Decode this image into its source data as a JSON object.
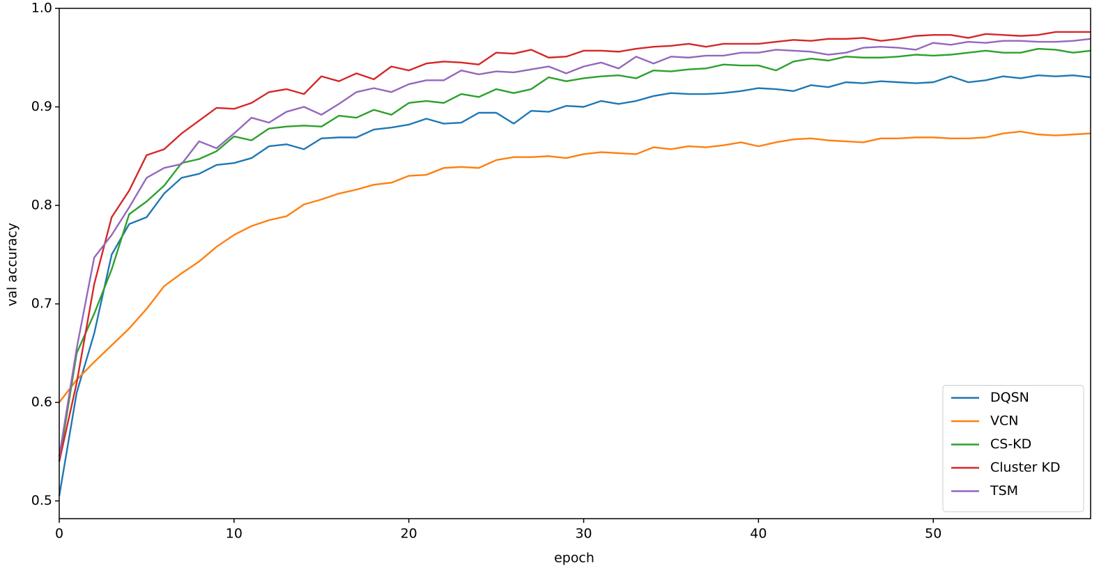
{
  "chart_data": {
    "type": "line",
    "xlabel": "epoch",
    "ylabel": "val accuracy",
    "x": [
      0,
      1,
      2,
      3,
      4,
      5,
      6,
      7,
      8,
      9,
      10,
      11,
      12,
      13,
      14,
      15,
      16,
      17,
      18,
      19,
      20,
      21,
      22,
      23,
      24,
      25,
      26,
      27,
      28,
      29,
      30,
      31,
      32,
      33,
      34,
      35,
      36,
      37,
      38,
      39,
      40,
      41,
      42,
      43,
      44,
      45,
      46,
      47,
      48,
      49,
      50,
      51,
      52,
      53,
      54,
      55,
      56,
      57,
      58,
      59
    ],
    "xlim": [
      0,
      59
    ],
    "xticks": [
      0,
      10,
      20,
      30,
      40,
      50
    ],
    "ylim": [
      0.482,
      1.0
    ],
    "yticks": [
      0.5,
      0.6,
      0.7,
      0.8,
      0.9,
      {
        "value": 1.0,
        "label": "1.0"
      }
    ],
    "grid": false,
    "legend": "lower right",
    "series": [
      {
        "name": "DQSN",
        "color": "#1f77b4",
        "values": [
          0.505,
          0.61,
          0.67,
          0.75,
          0.781,
          0.788,
          0.812,
          0.828,
          0.832,
          0.841,
          0.843,
          0.848,
          0.86,
          0.862,
          0.857,
          0.868,
          0.869,
          0.869,
          0.877,
          0.879,
          0.882,
          0.888,
          0.883,
          0.884,
          0.894,
          0.894,
          0.883,
          0.896,
          0.895,
          0.901,
          0.9,
          0.906,
          0.903,
          0.906,
          0.911,
          0.914,
          0.913,
          0.913,
          0.914,
          0.916,
          0.919,
          0.918,
          0.916,
          0.922,
          0.92,
          0.925,
          0.924,
          0.926,
          0.925,
          0.924,
          0.925,
          0.931,
          0.925,
          0.927,
          0.931,
          0.929,
          0.932,
          0.931,
          0.932,
          0.93
        ]
      },
      {
        "name": "VCN",
        "color": "#ff7f0e",
        "values": [
          0.6,
          0.623,
          0.641,
          0.658,
          0.675,
          0.695,
          0.718,
          0.731,
          0.743,
          0.758,
          0.77,
          0.779,
          0.785,
          0.789,
          0.801,
          0.806,
          0.812,
          0.816,
          0.821,
          0.823,
          0.83,
          0.831,
          0.838,
          0.839,
          0.838,
          0.846,
          0.849,
          0.849,
          0.85,
          0.848,
          0.852,
          0.854,
          0.853,
          0.852,
          0.859,
          0.857,
          0.86,
          0.859,
          0.861,
          0.864,
          0.86,
          0.864,
          0.867,
          0.868,
          0.866,
          0.865,
          0.864,
          0.868,
          0.868,
          0.869,
          0.869,
          0.868,
          0.868,
          0.869,
          0.873,
          0.875,
          0.872,
          0.871,
          0.872,
          0.873
        ]
      },
      {
        "name": "CS-KD",
        "color": "#2ca02c",
        "values": [
          0.54,
          0.65,
          0.69,
          0.735,
          0.791,
          0.804,
          0.82,
          0.843,
          0.847,
          0.855,
          0.87,
          0.866,
          0.878,
          0.88,
          0.881,
          0.88,
          0.891,
          0.889,
          0.897,
          0.892,
          0.904,
          0.906,
          0.904,
          0.913,
          0.91,
          0.918,
          0.914,
          0.918,
          0.93,
          0.926,
          0.929,
          0.931,
          0.932,
          0.929,
          0.937,
          0.936,
          0.938,
          0.939,
          0.943,
          0.942,
          0.942,
          0.937,
          0.946,
          0.949,
          0.947,
          0.951,
          0.95,
          0.95,
          0.951,
          0.953,
          0.952,
          0.953,
          0.955,
          0.957,
          0.955,
          0.955,
          0.959,
          0.958,
          0.955,
          0.957
        ]
      },
      {
        "name": "Cluster KD",
        "color": "#d62728",
        "values": [
          0.54,
          0.62,
          0.72,
          0.788,
          0.815,
          0.851,
          0.857,
          0.873,
          0.886,
          0.899,
          0.898,
          0.904,
          0.915,
          0.918,
          0.913,
          0.931,
          0.926,
          0.934,
          0.928,
          0.941,
          0.937,
          0.944,
          0.946,
          0.945,
          0.943,
          0.955,
          0.954,
          0.958,
          0.95,
          0.951,
          0.957,
          0.957,
          0.956,
          0.959,
          0.961,
          0.962,
          0.964,
          0.961,
          0.964,
          0.964,
          0.964,
          0.966,
          0.968,
          0.967,
          0.969,
          0.969,
          0.97,
          0.967,
          0.969,
          0.972,
          0.973,
          0.973,
          0.97,
          0.974,
          0.973,
          0.972,
          0.973,
          0.976,
          0.976,
          0.976
        ]
      },
      {
        "name": "TSM",
        "color": "#9467bd",
        "values": [
          0.545,
          0.655,
          0.747,
          0.77,
          0.798,
          0.828,
          0.838,
          0.842,
          0.865,
          0.858,
          0.873,
          0.889,
          0.884,
          0.895,
          0.9,
          0.892,
          0.903,
          0.915,
          0.919,
          0.915,
          0.923,
          0.927,
          0.927,
          0.937,
          0.933,
          0.936,
          0.935,
          0.938,
          0.941,
          0.934,
          0.941,
          0.945,
          0.939,
          0.951,
          0.944,
          0.951,
          0.95,
          0.952,
          0.952,
          0.955,
          0.955,
          0.958,
          0.957,
          0.956,
          0.953,
          0.955,
          0.96,
          0.961,
          0.96,
          0.958,
          0.965,
          0.963,
          0.966,
          0.965,
          0.967,
          0.967,
          0.966,
          0.966,
          0.967,
          0.969
        ]
      }
    ]
  }
}
